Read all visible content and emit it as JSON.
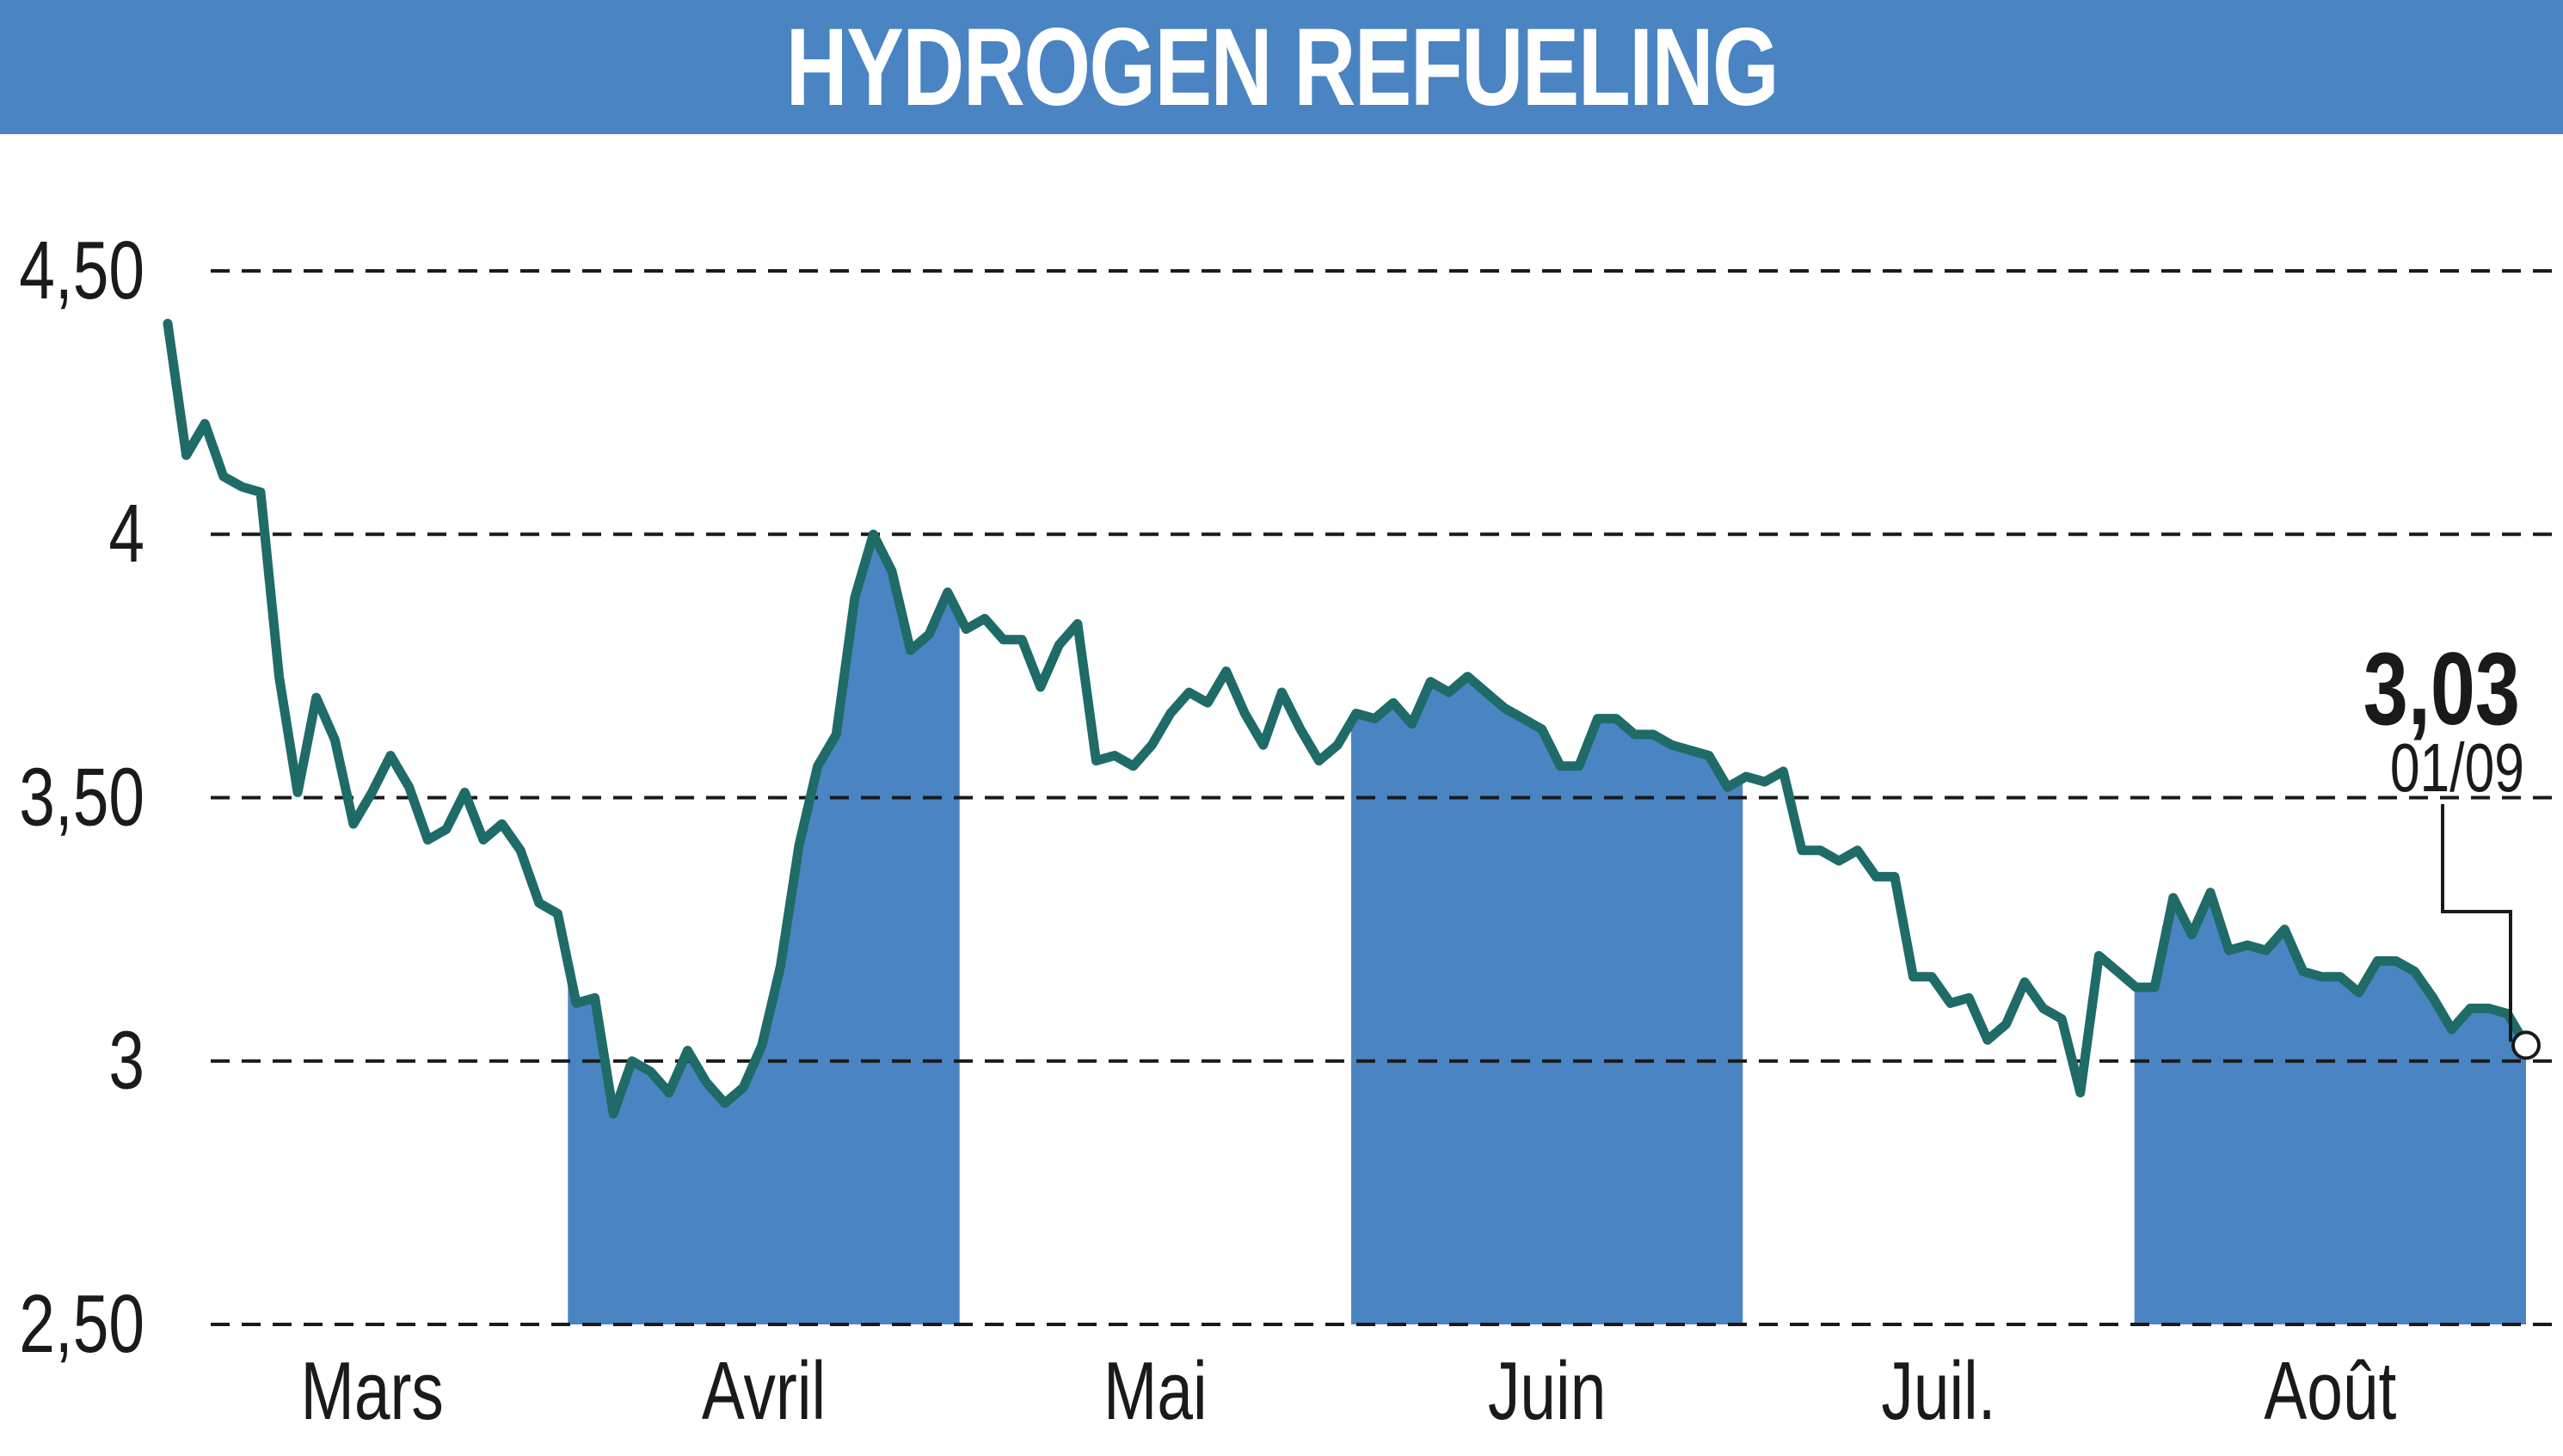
{
  "title": "HYDROGEN REFUELING",
  "colors": {
    "title_bar": "#4a84c2",
    "month_band": "#4a84c2",
    "line": "#1f6b67",
    "grid": "#1a1a1a"
  },
  "chart_data": {
    "type": "line",
    "title": "HYDROGEN REFUELING",
    "xlabel": "",
    "ylabel": "",
    "ylim": [
      2.5,
      4.5
    ],
    "y_ticks": [
      {
        "value": 4.5,
        "label": "4,50"
      },
      {
        "value": 4.0,
        "label": "4"
      },
      {
        "value": 3.5,
        "label": "3,50"
      },
      {
        "value": 3.0,
        "label": "3"
      },
      {
        "value": 2.5,
        "label": "2,50"
      }
    ],
    "months": [
      "Mars",
      "Avril",
      "Mai",
      "Juin",
      "Juil.",
      "Août"
    ],
    "shaded_months": [
      "Avril",
      "Juin",
      "Août"
    ],
    "grid": "dashed horizontal",
    "series": [
      {
        "values": [
          4.4,
          4.15,
          4.21,
          4.11,
          4.09,
          4.08,
          3.73,
          3.51,
          3.69,
          3.61,
          3.45,
          3.51,
          3.58,
          3.52,
          3.42,
          3.44,
          3.51,
          3.42,
          3.45,
          3.4,
          3.3,
          3.28,
          3.11,
          3.12,
          2.9,
          3.0,
          2.98,
          2.94,
          3.02,
          2.96,
          2.92,
          2.95,
          3.03,
          3.18,
          3.41,
          3.56,
          3.62,
          3.88,
          4.0,
          3.93,
          3.78,
          3.81,
          3.89,
          3.82,
          3.84,
          3.8,
          3.8,
          3.71,
          3.79,
          3.83,
          3.57,
          3.58,
          3.56,
          3.6,
          3.66,
          3.7,
          3.68,
          3.74,
          3.66,
          3.6,
          3.7,
          3.63,
          3.57,
          3.6,
          3.66,
          3.65,
          3.68,
          3.64,
          3.72,
          3.7,
          3.73,
          3.7,
          3.67,
          3.65,
          3.63,
          3.56,
          3.56,
          3.65,
          3.65,
          3.62,
          3.62,
          3.6,
          3.59,
          3.58,
          3.52,
          3.54,
          3.53,
          3.55,
          3.4,
          3.4,
          3.38,
          3.4,
          3.35,
          3.35,
          3.16,
          3.16,
          3.11,
          3.12,
          3.04,
          3.07,
          3.15,
          3.1,
          3.08,
          2.94,
          3.2,
          3.17,
          3.14,
          3.14,
          3.31,
          3.24,
          3.32,
          3.21,
          3.22,
          3.21,
          3.25,
          3.17,
          3.16,
          3.16,
          3.13,
          3.19,
          3.19,
          3.17,
          3.12,
          3.06,
          3.1,
          3.1,
          3.09,
          3.03
        ]
      }
    ],
    "last_value_label": "3,03",
    "last_date_label": "01/09"
  }
}
